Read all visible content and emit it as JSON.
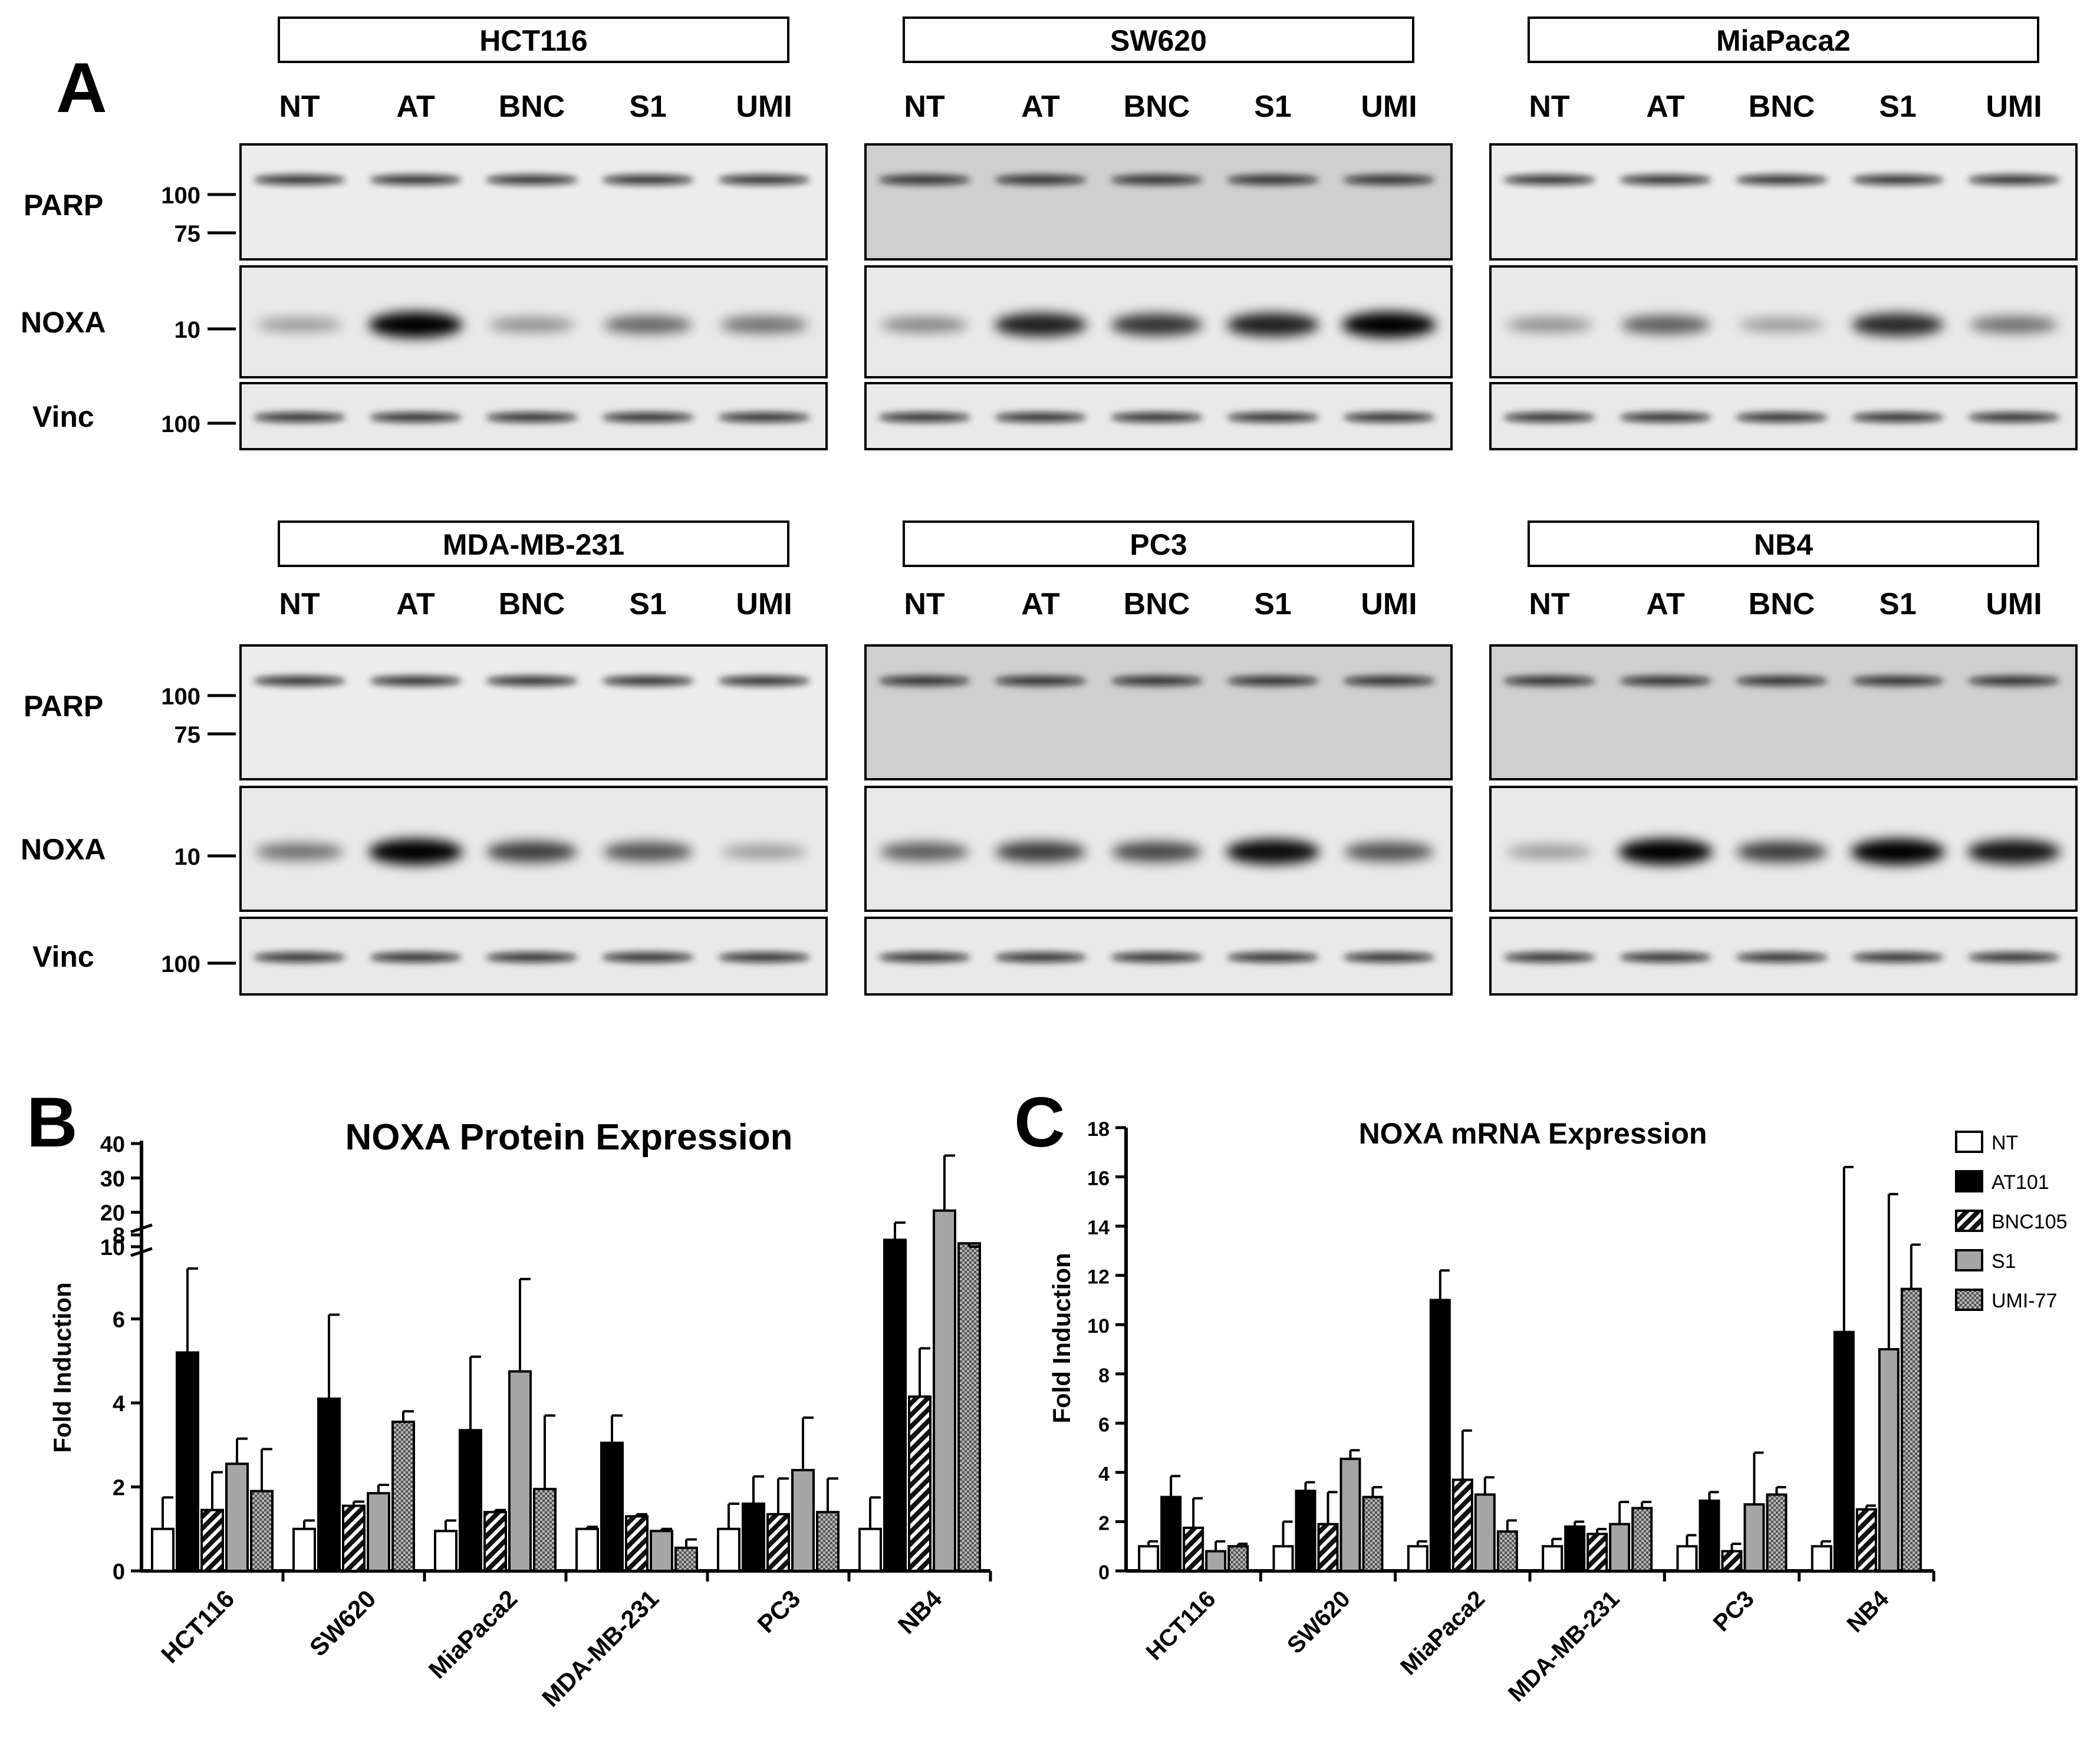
{
  "panel_labels": {
    "a": "A",
    "b": "B",
    "c": "C"
  },
  "blots": {
    "lanes": [
      "NT",
      "AT",
      "BNC",
      "S1",
      "UMI"
    ],
    "row_labels": [
      "PARP",
      "NOXA",
      "Vinc"
    ],
    "markers": {
      "parp": [
        "100",
        "75"
      ],
      "noxa": "10",
      "vinc": "100"
    },
    "cell_lines": [
      "HCT116",
      "SW620",
      "MiaPaca2",
      "MDA-MB-231",
      "PC3",
      "NB4"
    ]
  },
  "chart_data": [
    {
      "type": "bar",
      "title": "NOXA Protein Expression",
      "ylabel": "Fold Induction",
      "xlabel": "",
      "categories": [
        "HCT116",
        "SW620",
        "MiaPaca2",
        "MDA-MB-231",
        "PC3",
        "NB4"
      ],
      "axis_break": true,
      "ylim_lower": [
        0,
        8
      ],
      "yticks_lower": [
        "0",
        "2",
        "4",
        "6",
        "8"
      ],
      "ylim_upper": [
        10,
        40
      ],
      "yticks_upper": [
        "10",
        "20",
        "30",
        "40"
      ],
      "series": [
        {
          "name": "NT",
          "values": [
            1.0,
            1.0,
            0.95,
            1.0,
            1.0,
            1.0
          ],
          "errors": [
            0.75,
            0.2,
            0.25,
            0.05,
            0.6,
            0.75
          ]
        },
        {
          "name": "AT101",
          "values": [
            5.2,
            4.1,
            3.35,
            3.05,
            1.6,
            12.0
          ],
          "errors": [
            2.0,
            2.0,
            1.75,
            0.65,
            0.65,
            5.0
          ]
        },
        {
          "name": "BNC105",
          "values": [
            1.45,
            1.55,
            1.4,
            1.3,
            1.35,
            4.15
          ],
          "errors": [
            0.9,
            0.1,
            0.05,
            0.05,
            0.85,
            1.15
          ]
        },
        {
          "name": "S1",
          "values": [
            2.55,
            1.85,
            4.75,
            0.95,
            2.4,
            20.5
          ],
          "errors": [
            0.6,
            0.2,
            2.2,
            0.05,
            1.25,
            16.0
          ]
        },
        {
          "name": "UMI-77",
          "values": [
            1.9,
            3.55,
            1.95,
            0.55,
            1.4,
            7.8
          ],
          "errors": [
            1.0,
            0.25,
            1.75,
            0.2,
            0.8,
            1.5
          ]
        }
      ]
    },
    {
      "type": "bar",
      "title": "NOXA mRNA Expression",
      "ylabel": "Fold Induction",
      "xlabel": "",
      "categories": [
        "HCT116",
        "SW620",
        "MiaPaca2",
        "MDA-MB-231",
        "PC3",
        "NB4"
      ],
      "ylim": [
        0,
        18
      ],
      "yticks": [
        "0",
        "2",
        "4",
        "6",
        "8",
        "10",
        "12",
        "14",
        "16",
        "18"
      ],
      "legend_position": "top-right",
      "series": [
        {
          "name": "NT",
          "values": [
            1.0,
            1.0,
            1.0,
            1.0,
            1.0,
            1.0
          ],
          "errors": [
            0.2,
            1.0,
            0.2,
            0.3,
            0.45,
            0.2
          ]
        },
        {
          "name": "AT101",
          "values": [
            3.0,
            3.25,
            11.0,
            1.8,
            2.85,
            9.7
          ],
          "errors": [
            0.85,
            0.35,
            1.2,
            0.2,
            0.35,
            6.7
          ]
        },
        {
          "name": "BNC105",
          "values": [
            1.75,
            1.9,
            3.7,
            1.5,
            0.8,
            2.5
          ],
          "errors": [
            1.2,
            1.3,
            2.0,
            0.2,
            0.3,
            0.15
          ]
        },
        {
          "name": "S1",
          "values": [
            0.8,
            4.55,
            3.1,
            1.9,
            2.7,
            9.0
          ],
          "errors": [
            0.4,
            0.35,
            0.7,
            0.9,
            2.1,
            6.3
          ]
        },
        {
          "name": "UMI-77",
          "values": [
            1.0,
            3.0,
            1.6,
            2.55,
            3.1,
            11.45
          ],
          "errors": [
            0.1,
            0.4,
            0.45,
            0.25,
            0.3,
            1.8
          ]
        }
      ]
    }
  ],
  "colors": {
    "NT": "#ffffff",
    "AT101": "#000000",
    "BNC105": "#222222",
    "S1": "#a6a6a6",
    "UMI-77": "#8c8c8c"
  }
}
